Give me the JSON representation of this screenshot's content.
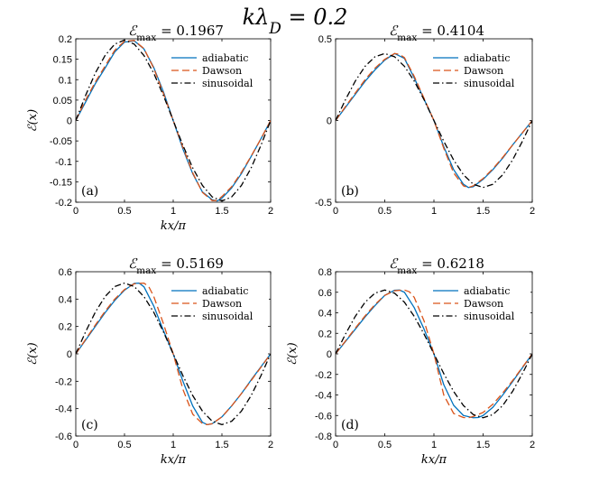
{
  "figure": {
    "suptitle": "kλ_D = 0.2"
  },
  "chart_data": [
    {
      "type": "line",
      "panel_label": "(a)",
      "title": "ℰ_max = 0.1967",
      "xlabel": "kx/π",
      "ylabel": "ℰ(x)",
      "xlim": [
        0,
        2
      ],
      "ylim": [
        -0.2,
        0.2
      ],
      "xticks": [
        "0",
        "0.5",
        "1",
        "1.5",
        "2"
      ],
      "yticks": [
        "0.2",
        "0.15",
        "0.1",
        "0.05",
        "0",
        "-0.05",
        "-0.1",
        "-0.15",
        "-0.2"
      ],
      "legend_position": "top-right",
      "series": [
        {
          "name": "adiabatic",
          "color": "#0072BD",
          "style": "solid",
          "x": [
            0,
            0.1,
            0.2,
            0.3,
            0.4,
            0.5,
            0.6,
            0.7,
            0.8,
            0.9,
            1.0,
            1.1,
            1.2,
            1.3,
            1.4,
            1.45,
            1.5,
            1.6,
            1.7,
            1.8,
            1.9,
            2.0
          ],
          "y": [
            0,
            0.045,
            0.09,
            0.128,
            0.168,
            0.192,
            0.195,
            0.175,
            0.13,
            0.07,
            0.0,
            -0.07,
            -0.13,
            -0.175,
            -0.194,
            -0.197,
            -0.19,
            -0.165,
            -0.13,
            -0.088,
            -0.045,
            0
          ]
        },
        {
          "name": "Dawson",
          "color": "#D95319",
          "style": "dashed",
          "x": [
            0,
            0.1,
            0.2,
            0.3,
            0.4,
            0.5,
            0.6,
            0.7,
            0.8,
            0.9,
            1.0,
            1.1,
            1.2,
            1.3,
            1.4,
            1.45,
            1.5,
            1.6,
            1.7,
            1.8,
            1.9,
            2.0
          ],
          "y": [
            0,
            0.05,
            0.094,
            0.133,
            0.172,
            0.194,
            0.196,
            0.176,
            0.128,
            0.066,
            0.0,
            -0.066,
            -0.128,
            -0.176,
            -0.196,
            -0.196,
            -0.186,
            -0.162,
            -0.127,
            -0.087,
            -0.045,
            0
          ]
        },
        {
          "name": "sinusoidal",
          "color": "#000000",
          "style": "dashdot",
          "x": [
            0,
            0.1,
            0.2,
            0.3,
            0.4,
            0.5,
            0.6,
            0.7,
            0.8,
            0.9,
            1.0,
            1.1,
            1.2,
            1.3,
            1.4,
            1.5,
            1.6,
            1.7,
            1.8,
            1.9,
            2.0
          ],
          "y": [
            0,
            0.061,
            0.116,
            0.159,
            0.187,
            0.197,
            0.187,
            0.159,
            0.116,
            0.061,
            0.0,
            -0.061,
            -0.116,
            -0.159,
            -0.187,
            -0.197,
            -0.187,
            -0.159,
            -0.116,
            -0.061,
            0
          ]
        }
      ]
    },
    {
      "type": "line",
      "panel_label": "(b)",
      "title": "ℰ_max = 0.4104",
      "xlabel": "",
      "ylabel": "",
      "xlim": [
        0,
        2
      ],
      "ylim": [
        -0.5,
        0.5
      ],
      "xticks": [
        "0",
        "0.5",
        "1",
        "1.5",
        "2"
      ],
      "yticks": [
        "0.5",
        "0",
        "-0.5"
      ],
      "legend_position": "top-right",
      "series": [
        {
          "name": "adiabatic",
          "color": "#0072BD",
          "style": "solid",
          "x": [
            0,
            0.1,
            0.2,
            0.3,
            0.4,
            0.5,
            0.6,
            0.7,
            0.8,
            0.9,
            1.0,
            1.1,
            1.2,
            1.3,
            1.35,
            1.4,
            1.5,
            1.6,
            1.7,
            1.8,
            1.9,
            2.0
          ],
          "y": [
            0,
            0.08,
            0.16,
            0.24,
            0.31,
            0.37,
            0.41,
            0.38,
            0.26,
            0.13,
            0.0,
            -0.16,
            -0.3,
            -0.39,
            -0.41,
            -0.405,
            -0.36,
            -0.3,
            -0.23,
            -0.15,
            -0.075,
            0
          ]
        },
        {
          "name": "Dawson",
          "color": "#D95319",
          "style": "dashed",
          "x": [
            0,
            0.1,
            0.2,
            0.3,
            0.4,
            0.5,
            0.6,
            0.65,
            0.7,
            0.8,
            0.9,
            1.0,
            1.1,
            1.2,
            1.3,
            1.35,
            1.4,
            1.5,
            1.6,
            1.7,
            1.8,
            1.9,
            2.0
          ],
          "y": [
            0,
            0.085,
            0.168,
            0.25,
            0.32,
            0.375,
            0.41,
            0.405,
            0.385,
            0.27,
            0.135,
            0.0,
            -0.17,
            -0.32,
            -0.4,
            -0.41,
            -0.4,
            -0.355,
            -0.295,
            -0.225,
            -0.15,
            -0.075,
            0
          ]
        },
        {
          "name": "sinusoidal",
          "color": "#000000",
          "style": "dashdot",
          "x": [
            0,
            0.1,
            0.2,
            0.3,
            0.4,
            0.5,
            0.6,
            0.7,
            0.8,
            0.9,
            1.0,
            1.1,
            1.2,
            1.3,
            1.4,
            1.5,
            1.6,
            1.7,
            1.8,
            1.9,
            2.0
          ],
          "y": [
            0,
            0.127,
            0.241,
            0.332,
            0.39,
            0.41,
            0.39,
            0.332,
            0.241,
            0.127,
            0.0,
            -0.127,
            -0.241,
            -0.332,
            -0.39,
            -0.41,
            -0.39,
            -0.332,
            -0.241,
            -0.127,
            0
          ]
        }
      ]
    },
    {
      "type": "line",
      "panel_label": "(c)",
      "title": "ℰ_max = 0.5169",
      "xlabel": "kx/π",
      "ylabel": "ℰ(x)",
      "xlim": [
        0,
        2
      ],
      "ylim": [
        -0.6,
        0.6
      ],
      "xticks": [
        "0",
        "0.5",
        "1",
        "1.5",
        "2"
      ],
      "yticks": [
        "0.6",
        "0.4",
        "0.2",
        "0",
        "-0.2",
        "-0.4",
        "-0.6"
      ],
      "legend_position": "top-right",
      "series": [
        {
          "name": "adiabatic",
          "color": "#0072BD",
          "style": "solid",
          "x": [
            0,
            0.1,
            0.2,
            0.3,
            0.4,
            0.5,
            0.6,
            0.65,
            0.7,
            0.8,
            0.9,
            1.0,
            1.1,
            1.2,
            1.3,
            1.35,
            1.4,
            1.5,
            1.6,
            1.7,
            1.8,
            1.9,
            2.0
          ],
          "y": [
            0,
            0.1,
            0.2,
            0.3,
            0.39,
            0.465,
            0.515,
            0.517,
            0.49,
            0.35,
            0.17,
            0.0,
            -0.2,
            -0.38,
            -0.5,
            -0.517,
            -0.51,
            -0.46,
            -0.38,
            -0.29,
            -0.19,
            -0.095,
            0
          ]
        },
        {
          "name": "Dawson",
          "color": "#D95319",
          "style": "dashed",
          "x": [
            0,
            0.1,
            0.2,
            0.3,
            0.4,
            0.5,
            0.6,
            0.7,
            0.75,
            0.8,
            0.9,
            1.0,
            1.1,
            1.2,
            1.3,
            1.35,
            1.4,
            1.5,
            1.6,
            1.7,
            1.8,
            1.9,
            2.0
          ],
          "y": [
            0,
            0.105,
            0.21,
            0.31,
            0.4,
            0.47,
            0.512,
            0.517,
            0.49,
            0.42,
            0.22,
            0.0,
            -0.26,
            -0.44,
            -0.51,
            -0.517,
            -0.51,
            -0.46,
            -0.38,
            -0.29,
            -0.195,
            -0.098,
            0
          ]
        },
        {
          "name": "sinusoidal",
          "color": "#000000",
          "style": "dashdot",
          "x": [
            0,
            0.1,
            0.2,
            0.3,
            0.4,
            0.5,
            0.6,
            0.7,
            0.8,
            0.9,
            1.0,
            1.1,
            1.2,
            1.3,
            1.4,
            1.5,
            1.6,
            1.7,
            1.8,
            1.9,
            2.0
          ],
          "y": [
            0,
            0.16,
            0.304,
            0.418,
            0.492,
            0.517,
            0.492,
            0.418,
            0.304,
            0.16,
            0.0,
            -0.16,
            -0.304,
            -0.418,
            -0.492,
            -0.517,
            -0.492,
            -0.418,
            -0.304,
            -0.16,
            0
          ]
        }
      ]
    },
    {
      "type": "line",
      "panel_label": "(d)",
      "title": "ℰ_max = 0.6218",
      "xlabel": "kx/π",
      "ylabel": "ℰ(x)",
      "xlim": [
        0,
        2
      ],
      "ylim": [
        -0.8,
        0.8
      ],
      "xticks": [
        "0",
        "0.5",
        "1",
        "1.5",
        "2"
      ],
      "yticks": [
        "0.8",
        "0.6",
        "0.4",
        "0.2",
        "0",
        "-0.2",
        "-0.4",
        "-0.6",
        "-0.8"
      ],
      "legend_position": "top-right",
      "series": [
        {
          "name": "adiabatic",
          "color": "#0072BD",
          "style": "solid",
          "x": [
            0,
            0.1,
            0.2,
            0.3,
            0.4,
            0.5,
            0.6,
            0.65,
            0.7,
            0.8,
            0.9,
            1.0,
            1.1,
            1.2,
            1.3,
            1.4,
            1.45,
            1.5,
            1.6,
            1.7,
            1.8,
            1.9,
            2.0
          ],
          "y": [
            0,
            0.12,
            0.24,
            0.36,
            0.47,
            0.57,
            0.62,
            0.622,
            0.6,
            0.45,
            0.24,
            0.0,
            -0.3,
            -0.5,
            -0.6,
            -0.622,
            -0.62,
            -0.6,
            -0.52,
            -0.4,
            -0.27,
            -0.135,
            0
          ]
        },
        {
          "name": "Dawson",
          "color": "#D95319",
          "style": "dashed",
          "x": [
            0,
            0.1,
            0.2,
            0.3,
            0.4,
            0.5,
            0.6,
            0.7,
            0.75,
            0.8,
            0.9,
            1.0,
            1.1,
            1.2,
            1.3,
            1.35,
            1.4,
            1.5,
            1.6,
            1.7,
            1.8,
            1.9,
            2.0
          ],
          "y": [
            0,
            0.125,
            0.25,
            0.37,
            0.48,
            0.57,
            0.615,
            0.622,
            0.605,
            0.55,
            0.32,
            0.0,
            -0.4,
            -0.58,
            -0.62,
            -0.622,
            -0.61,
            -0.57,
            -0.49,
            -0.38,
            -0.26,
            -0.13,
            0
          ]
        },
        {
          "name": "sinusoidal",
          "color": "#000000",
          "style": "dashdot",
          "x": [
            0,
            0.1,
            0.2,
            0.3,
            0.4,
            0.5,
            0.6,
            0.7,
            0.8,
            0.9,
            1.0,
            1.1,
            1.2,
            1.3,
            1.4,
            1.5,
            1.6,
            1.7,
            1.8,
            1.9,
            2.0
          ],
          "y": [
            0,
            0.192,
            0.365,
            0.503,
            0.591,
            0.622,
            0.591,
            0.503,
            0.365,
            0.192,
            0.0,
            -0.192,
            -0.365,
            -0.503,
            -0.591,
            -0.622,
            -0.591,
            -0.503,
            -0.365,
            -0.192,
            0
          ]
        }
      ]
    }
  ]
}
